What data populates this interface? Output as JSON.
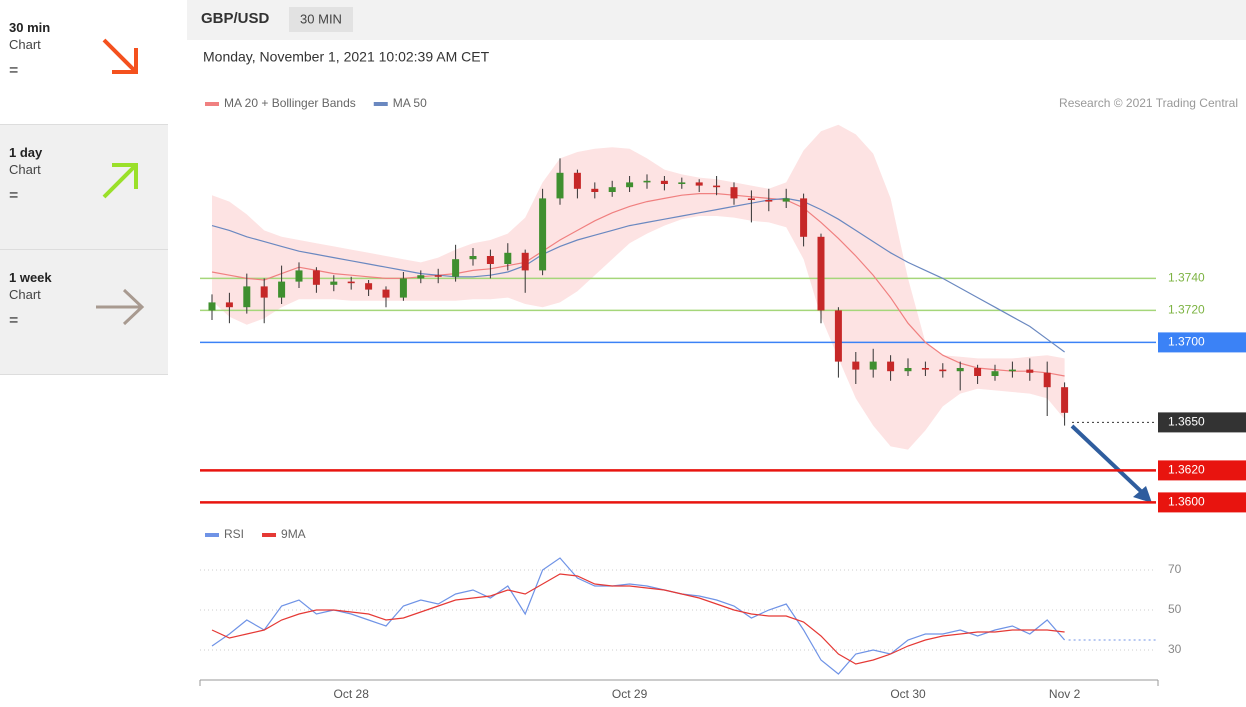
{
  "sidebar": [
    {
      "period": "30 min",
      "label": "Chart",
      "symbol": "="
    },
    {
      "period": "1 day",
      "label": "Chart",
      "symbol": "="
    },
    {
      "period": "1 week",
      "label": "Chart",
      "symbol": "="
    }
  ],
  "header": {
    "pair": "GBP/USD",
    "interval": "30 MIN",
    "timestamp": "Monday, November 1, 2021 10:02:39 AM CET",
    "credit": "Research © 2021 Trading Central"
  },
  "chart_data": [
    {
      "type": "candlestick",
      "up_color": "#3f8f2f",
      "down_color": "#c62828",
      "ohlc": {
        "open": [
          1.372,
          1.3725,
          1.3722,
          1.3735,
          1.3728,
          1.3738,
          1.3745,
          1.3736,
          1.3738,
          1.3737,
          1.3733,
          1.3728,
          1.374,
          1.3742,
          1.3741,
          1.3752,
          1.3754,
          1.3749,
          1.3756,
          1.3745,
          1.379,
          1.3806,
          1.3796,
          1.3794,
          1.3797,
          1.38,
          1.3801,
          1.3799,
          1.38,
          1.3798,
          1.3797,
          1.379,
          1.3789,
          1.3788,
          1.379,
          1.3766,
          1.372,
          1.3688,
          1.3683,
          1.3688,
          1.3682,
          1.3684,
          1.3683,
          1.3682,
          1.3684,
          1.3679,
          1.3682,
          1.3683,
          1.3681,
          1.3672
        ],
        "high": [
          1.373,
          1.3731,
          1.3743,
          1.374,
          1.3748,
          1.375,
          1.3747,
          1.3742,
          1.3741,
          1.3739,
          1.3735,
          1.3744,
          1.3745,
          1.3746,
          1.3761,
          1.3759,
          1.3758,
          1.3762,
          1.3758,
          1.3796,
          1.3815,
          1.3808,
          1.38,
          1.3801,
          1.3804,
          1.3805,
          1.3804,
          1.3803,
          1.3802,
          1.3804,
          1.38,
          1.3795,
          1.3796,
          1.3796,
          1.3793,
          1.3768,
          1.3722,
          1.3694,
          1.3696,
          1.3692,
          1.369,
          1.3688,
          1.3687,
          1.3688,
          1.3686,
          1.3686,
          1.3688,
          1.369,
          1.3688,
          1.3675
        ],
        "low": [
          1.3714,
          1.3712,
          1.3718,
          1.3712,
          1.3724,
          1.3734,
          1.3731,
          1.3732,
          1.3733,
          1.3729,
          1.3722,
          1.3726,
          1.3737,
          1.3737,
          1.3738,
          1.3748,
          1.374,
          1.3745,
          1.3731,
          1.3742,
          1.3786,
          1.379,
          1.379,
          1.3791,
          1.3794,
          1.3796,
          1.3795,
          1.3796,
          1.3794,
          1.3792,
          1.3786,
          1.3775,
          1.3782,
          1.3784,
          1.376,
          1.3712,
          1.3678,
          1.3674,
          1.3678,
          1.3676,
          1.3679,
          1.3679,
          1.3678,
          1.367,
          1.3674,
          1.3676,
          1.3678,
          1.3676,
          1.3654,
          1.3648
        ],
        "close": [
          1.3725,
          1.3722,
          1.3735,
          1.3728,
          1.3738,
          1.3745,
          1.3736,
          1.3738,
          1.3737,
          1.3733,
          1.3728,
          1.374,
          1.3742,
          1.3741,
          1.3752,
          1.3754,
          1.3749,
          1.3756,
          1.3745,
          1.379,
          1.3806,
          1.3796,
          1.3794,
          1.3797,
          1.38,
          1.3801,
          1.3799,
          1.38,
          1.3798,
          1.3797,
          1.379,
          1.3789,
          1.3788,
          1.379,
          1.3766,
          1.372,
          1.3688,
          1.3683,
          1.3688,
          1.3682,
          1.3684,
          1.3683,
          1.3682,
          1.3684,
          1.3679,
          1.3682,
          1.3683,
          1.3681,
          1.3672,
          1.3656
        ]
      },
      "overlays": [
        {
          "name": "MA 20 + Bollinger Bands",
          "color": "#f08080",
          "band_color": "#fde3e3",
          "values": [
            1.3744,
            1.3742,
            1.374,
            1.3739,
            1.3743,
            1.3747,
            1.3745,
            1.3743,
            1.3742,
            1.3741,
            1.374,
            1.374,
            1.3741,
            1.3742,
            1.3743,
            1.3745,
            1.3746,
            1.3748,
            1.375,
            1.3757,
            1.3764,
            1.377,
            1.3776,
            1.3781,
            1.3785,
            1.3788,
            1.379,
            1.3792,
            1.3793,
            1.3793,
            1.3792,
            1.3791,
            1.379,
            1.3789,
            1.3784,
            1.3775,
            1.3765,
            1.3754,
            1.3742,
            1.3728,
            1.3712,
            1.37,
            1.3692,
            1.3687,
            1.3684,
            1.3683,
            1.3682,
            1.3682,
            1.3681,
            1.3679
          ],
          "upper": [
            1.3792,
            1.3788,
            1.378,
            1.377,
            1.3766,
            1.3764,
            1.3762,
            1.376,
            1.3758,
            1.3756,
            1.3754,
            1.3752,
            1.375,
            1.3753,
            1.3758,
            1.3762,
            1.3764,
            1.3768,
            1.3778,
            1.38,
            1.3815,
            1.3819,
            1.3821,
            1.3822,
            1.3821,
            1.3815,
            1.3808,
            1.3805,
            1.3803,
            1.3802,
            1.38,
            1.3798,
            1.3796,
            1.38,
            1.382,
            1.3832,
            1.3836,
            1.383,
            1.3818,
            1.379,
            1.374,
            1.37,
            1.3692,
            1.3691,
            1.369,
            1.369,
            1.369,
            1.3691,
            1.3692,
            1.369
          ],
          "lower": [
            1.3726,
            1.3716,
            1.3711,
            1.3715,
            1.3722,
            1.3727,
            1.3727,
            1.3727,
            1.3726,
            1.3726,
            1.3726,
            1.3726,
            1.3726,
            1.3726,
            1.3726,
            1.3727,
            1.3727,
            1.3728,
            1.3724,
            1.3722,
            1.3725,
            1.3732,
            1.3742,
            1.3752,
            1.3762,
            1.3768,
            1.3773,
            1.3777,
            1.3779,
            1.3779,
            1.3778,
            1.3776,
            1.3775,
            1.3772,
            1.3752,
            1.3716,
            1.369,
            1.3665,
            1.3648,
            1.3635,
            1.3633,
            1.3645,
            1.366,
            1.3668,
            1.3671,
            1.367,
            1.3669,
            1.3668,
            1.3665,
            1.3652
          ]
        },
        {
          "name": "MA 50",
          "color": "#6a88c0",
          "values": [
            1.3773,
            1.377,
            1.3766,
            1.3763,
            1.376,
            1.3757,
            1.3755,
            1.3753,
            1.3751,
            1.3749,
            1.3747,
            1.3745,
            1.3743,
            1.3742,
            1.3741,
            1.3741,
            1.3742,
            1.3744,
            1.3748,
            1.3755,
            1.376,
            1.3764,
            1.3767,
            1.377,
            1.3773,
            1.3775,
            1.3777,
            1.3779,
            1.3781,
            1.3783,
            1.3785,
            1.3787,
            1.3789,
            1.379,
            1.3788,
            1.3783,
            1.3777,
            1.377,
            1.3763,
            1.3756,
            1.375,
            1.3745,
            1.374,
            1.3734,
            1.3728,
            1.3722,
            1.3716,
            1.371,
            1.3702,
            1.3694
          ]
        }
      ],
      "ylim": [
        1.3589,
        1.3839
      ],
      "levels": [
        {
          "value": 1.374,
          "label": "1.3740",
          "color": "#a5d67a",
          "boxed": false,
          "line": "solid"
        },
        {
          "value": 1.372,
          "label": "1.3720",
          "color": "#a5d67a",
          "boxed": false,
          "line": "solid"
        },
        {
          "value": 1.37,
          "label": "1.3700",
          "color": "#3b82f6",
          "boxed": true,
          "line": "solid"
        },
        {
          "value": 1.365,
          "label": "1.3650",
          "color": "#333333",
          "boxed": true,
          "line": "dotted"
        },
        {
          "value": 1.362,
          "label": "1.3620",
          "color": "#e8140f",
          "boxed": true,
          "line": "solid"
        },
        {
          "value": 1.36,
          "label": "1.3600",
          "color": "#e8140f",
          "boxed": true,
          "line": "solid"
        }
      ]
    },
    {
      "type": "line",
      "categories": [
        null,
        null,
        null,
        null,
        null,
        null,
        null,
        null,
        "Oct 28",
        null,
        null,
        null,
        null,
        null,
        null,
        null,
        null,
        null,
        null,
        null,
        null,
        null,
        null,
        null,
        "Oct 29",
        null,
        null,
        null,
        null,
        null,
        null,
        null,
        null,
        null,
        null,
        null,
        null,
        null,
        null,
        null,
        "Oct 30",
        null,
        null,
        null,
        null,
        null,
        null,
        null,
        null,
        "Nov 2"
      ],
      "series": [
        {
          "name": "RSI",
          "color": "#6f93e6",
          "values": [
            32,
            38,
            45,
            40,
            52,
            55,
            48,
            50,
            48,
            45,
            42,
            52,
            55,
            53,
            58,
            60,
            56,
            62,
            48,
            70,
            76,
            66,
            62,
            62,
            63,
            62,
            60,
            58,
            57,
            55,
            52,
            46,
            50,
            53,
            40,
            25,
            18,
            28,
            30,
            28,
            35,
            38,
            38,
            40,
            37,
            40,
            42,
            38,
            45,
            35
          ]
        },
        {
          "name": "9MA",
          "color": "#e53935",
          "values": [
            40,
            36,
            38,
            40,
            45,
            48,
            50,
            50,
            49,
            48,
            45,
            46,
            49,
            52,
            55,
            56,
            57,
            60,
            58,
            63,
            68,
            67,
            63,
            62,
            62,
            61,
            60,
            58,
            56,
            53,
            50,
            48,
            47,
            47,
            44,
            37,
            28,
            23,
            25,
            28,
            32,
            35,
            37,
            38,
            39,
            39,
            40,
            40,
            40,
            39
          ]
        }
      ],
      "ylim": [
        15,
        78
      ],
      "yticks": [
        30,
        50,
        70
      ],
      "grid": true
    }
  ]
}
